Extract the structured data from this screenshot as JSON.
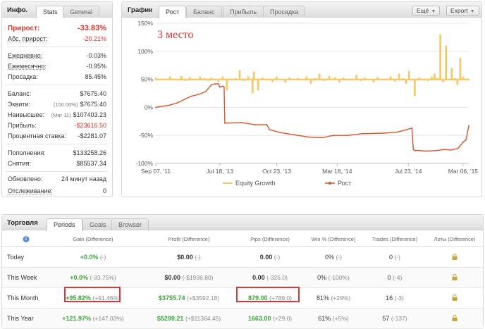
{
  "info": {
    "title": "Инфо.",
    "tabs": [
      "Stats",
      "General"
    ],
    "rows": [
      {
        "label": "Прирост:",
        "value": "-33.83%"
      },
      {
        "label": "Абс. прирост:",
        "value": "-20.21%"
      },
      {
        "label": "Ежедневно:",
        "value": "-0.03%"
      },
      {
        "label": "Ежемесячно:",
        "value": "-0.95%"
      },
      {
        "label": "Просадка:",
        "value": "85.45%"
      },
      {
        "label": "Баланс:",
        "value": "$7675.40"
      },
      {
        "label": "Эквити:",
        "note": "(100.00%)",
        "value": "$7675.40"
      },
      {
        "label": "Наивысшее:",
        "note": "(Mar 11)",
        "value": "$107403.23"
      },
      {
        "label": "Прибыль:",
        "value": "-$23616.50"
      },
      {
        "label": "Процентная ставка:",
        "value": "-$2281.07"
      },
      {
        "label": "Пополнения:",
        "value": "$133258.26"
      },
      {
        "label": "Снятия:",
        "value": "$85537.34"
      },
      {
        "label": "Обновлено:",
        "value": "24 минут назад"
      },
      {
        "label": "Отслеживание:",
        "value": "0"
      }
    ]
  },
  "graph": {
    "title": "График",
    "tabs": [
      "Рост",
      "Баланс",
      "Прибыль",
      "Просадка"
    ],
    "more_label": "Ещё",
    "export_label": "Export",
    "annotation": "3 место"
  },
  "chart_data": {
    "type": "line",
    "x_ticks": [
      "Sep 07, '11",
      "Jul 18, '13",
      "Oct 23, '13",
      "Mar 18, '14",
      "Jul 23, '14",
      "Mar 06, '15"
    ],
    "y_ticks": [
      "150%",
      "100%",
      "50%",
      "0%",
      "-50%",
      "-100%"
    ],
    "ylim": [
      -100,
      150
    ],
    "grid": true,
    "legend_position": "bottom",
    "series": [
      {
        "name": "Equity Growth",
        "type": "bar",
        "color": "#f5c96a",
        "baseline": 50,
        "x_index": [
          0,
          14,
          20,
          26,
          32,
          36,
          38,
          42,
          48,
          54,
          58,
          62,
          68,
          74,
          78,
          83,
          88,
          94,
          100,
          106,
          112,
          118,
          124,
          130,
          136,
          138,
          140,
          144,
          150,
          156,
          160,
          164,
          170,
          176,
          182,
          188,
          194,
          200,
          206,
          212,
          218,
          224,
          230,
          236,
          240,
          244,
          248,
          252,
          258,
          264,
          270,
          276,
          282,
          288,
          294,
          300,
          306,
          312,
          318,
          324,
          330,
          336,
          342,
          348,
          352,
          356,
          360,
          364,
          366,
          370,
          376,
          382,
          388,
          392,
          396,
          400,
          404,
          408,
          412,
          416,
          420,
          424,
          428,
          432,
          436
        ],
        "values": [
          53,
          49,
          55,
          50,
          48,
          56,
          51,
          47,
          54,
          50,
          49,
          55,
          52,
          47,
          53,
          50,
          46,
          55,
          30,
          49,
          52,
          66,
          47,
          55,
          25,
          64,
          48,
          30,
          53,
          48,
          51,
          45,
          55,
          50,
          44,
          53,
          49,
          52,
          48,
          55,
          42,
          52,
          60,
          47,
          51,
          56,
          49,
          54,
          44,
          53,
          50,
          49,
          58,
          47,
          53,
          50,
          45,
          54,
          49,
          51,
          55,
          46,
          60,
          52,
          42,
          65,
          50,
          20,
          48,
          53,
          50,
          47,
          55,
          60,
          52,
          130,
          45,
          110,
          50,
          70,
          52,
          40,
          88,
          55,
          50
        ]
      },
      {
        "name": "Рост",
        "type": "line",
        "color": "#d9542b",
        "x_index": [
          0,
          4,
          10,
          20,
          30,
          40,
          50,
          60,
          70,
          78,
          84,
          88,
          90,
          94,
          96,
          97,
          100,
          120,
          140,
          156,
          160,
          175,
          195,
          215,
          235,
          245,
          250,
          270,
          290,
          320,
          340,
          360,
          362,
          364,
          370,
          380,
          395,
          405,
          415,
          425,
          432,
          436,
          440
        ],
        "values": [
          0,
          1,
          2,
          4,
          8,
          14,
          20,
          23,
          28,
          40,
          42,
          42,
          36,
          38,
          36,
          -28,
          -28,
          -27,
          -31,
          -31,
          -40,
          -45,
          -49,
          -53,
          -54,
          -51,
          -50,
          -50,
          -47,
          -46,
          -44,
          -37,
          -75,
          -77,
          -77,
          -78,
          -77,
          -75,
          -76,
          -73,
          -62,
          -58,
          -33
        ]
      }
    ]
  },
  "trading": {
    "title": "Торговля",
    "tabs": [
      "Periods",
      "Goals",
      "Browser"
    ],
    "info_icon": "info-icon",
    "lock_icon": "lock-icon",
    "columns": [
      "Gain (Difference)",
      "Profit (Difference)",
      "Pips (Difference)",
      "Win % (Difference)",
      "Trades (Difference)",
      "Лоты (Difference)"
    ],
    "rows": [
      {
        "label": "Today",
        "gain": "+0.0%",
        "gain_diff": "(-)",
        "profit": "$0.00",
        "profit_diff": "(-)",
        "pips": "0.00",
        "pips_diff": "(-)",
        "win": "0%",
        "win_diff": "(-)",
        "trades": "0",
        "trades_diff": "(-)"
      },
      {
        "label": "This Week",
        "gain": "+0.0%",
        "gain_diff": "(-33.75%)",
        "profit": "$0.00",
        "profit_diff": "(-$1936.80)",
        "pips": "0.00",
        "pips_diff": "(-326.0)",
        "win": "0%",
        "win_diff": "(-100%)",
        "trades": "0",
        "trades_diff": "(-4)"
      },
      {
        "label": "This Month",
        "gain": "+95.82%",
        "gain_diff": "(+91.46%)",
        "profit": "$3755.74",
        "profit_diff": "(+$3592.18)",
        "pips": "879.00",
        "pips_diff": "(+789.0)",
        "win": "81%",
        "win_diff": "(+29%)",
        "trades": "16",
        "trades_diff": "(-3)"
      },
      {
        "label": "This Year",
        "gain": "+121.97%",
        "gain_diff": "(+147.03%)",
        "profit": "$5299.21",
        "profit_diff": "(+$11364.45)",
        "pips": "1663.00",
        "pips_diff": "(+29.0)",
        "win": "61%",
        "win_diff": "(+5%)",
        "trades": "57",
        "trades_diff": "(-137)"
      }
    ]
  }
}
